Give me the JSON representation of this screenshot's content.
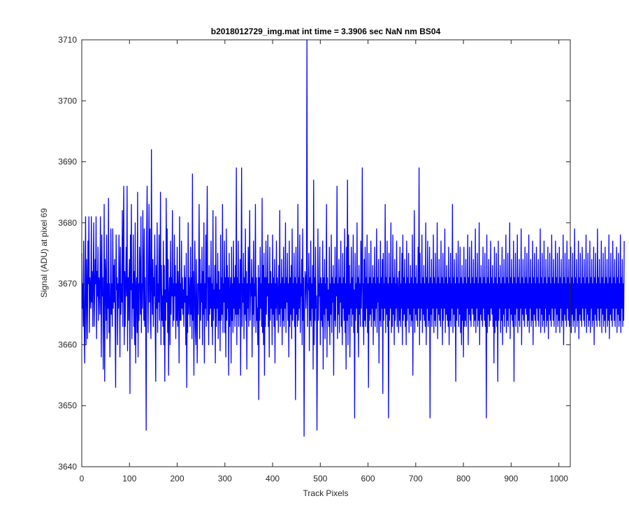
{
  "chart_data": {
    "type": "line",
    "title": "b2018012729_img.mat int time = 3.3906 sec  NaN nm BS04",
    "xlabel": "Track Pixels",
    "ylabel": "Signal (ADU) at pixel 69",
    "xlim": [
      0,
      1024
    ],
    "ylim": [
      3640,
      3710
    ],
    "xticks": [
      0,
      100,
      200,
      300,
      400,
      500,
      600,
      700,
      800,
      900,
      1000
    ],
    "yticks": [
      3640,
      3650,
      3660,
      3670,
      3680,
      3690,
      3700,
      3710
    ],
    "grid": false,
    "legend": "none",
    "series_color": "#0000ff",
    "series": [
      {
        "x_start": 0,
        "x_step": 1,
        "values": [
          3675,
          3666,
          3670,
          3663,
          3677,
          3664,
          3657,
          3670,
          3681,
          3660,
          3674,
          3669,
          3661,
          3677,
          3670,
          3681,
          3662,
          3671,
          3669,
          3666,
          3681,
          3667,
          3672,
          3663,
          3671,
          3680,
          3663,
          3668,
          3674,
          3670,
          3681,
          3661,
          3672,
          3668,
          3676,
          3664,
          3671,
          3670,
          3665,
          3681,
          3672,
          3658,
          3678,
          3668,
          3671,
          3656,
          3667,
          3683,
          3654,
          3674,
          3671,
          3664,
          3678,
          3661,
          3670,
          3666,
          3684,
          3662,
          3670,
          3658,
          3666,
          3679,
          3665,
          3670,
          3663,
          3679,
          3666,
          3673,
          3667,
          3674,
          3663,
          3653,
          3678,
          3669,
          3671,
          3660,
          3670,
          3666,
          3678,
          3671,
          3658,
          3676,
          3665,
          3670,
          3667,
          3682,
          3663,
          3676,
          3686,
          3660,
          3672,
          3663,
          3670,
          3676,
          3668,
          3686,
          3659,
          3671,
          3664,
          3671,
          3674,
          3652,
          3678,
          3669,
          3683,
          3661,
          3670,
          3666,
          3678,
          3663,
          3672,
          3660,
          3680,
          3657,
          3669,
          3671,
          3662,
          3685,
          3658,
          3670,
          3664,
          3676,
          3672,
          3665,
          3681,
          3662,
          3670,
          3666,
          3682,
          3671,
          3664,
          3679,
          3663,
          3671,
          3665,
          3646,
          3678,
          3686,
          3670,
          3662,
          3671,
          3683,
          3667,
          3679,
          3664,
          3661,
          3692,
          3670,
          3665,
          3674,
          3663,
          3671,
          3668,
          3678,
          3663,
          3654,
          3673,
          3666,
          3680,
          3662,
          3670,
          3667,
          3678,
          3664,
          3671,
          3685,
          3660,
          3673,
          3664,
          3668,
          3663,
          3677,
          3660,
          3673,
          3654,
          3669,
          3664,
          3684,
          3667,
          3679,
          3662,
          3674,
          3655,
          3668,
          3671,
          3660,
          3677,
          3665,
          3671,
          3668,
          3682,
          3663,
          3670,
          3664,
          3678,
          3668,
          3673,
          3661,
          3670,
          3664,
          3676,
          3663,
          3672,
          3669,
          3657,
          3681,
          3664,
          3670,
          3664,
          3677,
          3666,
          3671,
          3665,
          3669,
          3663,
          3673,
          3667,
          3671,
          3660,
          3675,
          3653,
          3668,
          3662,
          3680,
          3665,
          3671,
          3668,
          3663,
          3676,
          3665,
          3671,
          3661,
          3688,
          3664,
          3672,
          3655,
          3669,
          3677,
          3663,
          3660,
          3674,
          3666,
          3657,
          3670,
          3665,
          3671,
          3683,
          3661,
          3674,
          3664,
          3670,
          3667,
          3676,
          3660,
          3672,
          3665,
          3680,
          3657,
          3670,
          3666,
          3678,
          3663,
          3675,
          3686,
          3664,
          3671,
          3660,
          3673,
          3665,
          3671,
          3666,
          3677,
          3663,
          3670,
          3660,
          3682,
          3664,
          3669,
          3666,
          3673,
          3657,
          3681,
          3663,
          3670,
          3666,
          3675,
          3661,
          3672,
          3664,
          3669,
          3659,
          3678,
          3664,
          3671,
          3665,
          3683,
          3662,
          3670,
          3667,
          3677,
          3662,
          3671,
          3658,
          3679,
          3664,
          3673,
          3666,
          3671,
          3655,
          3675,
          3663,
          3668,
          3671,
          3657,
          3676,
          3664,
          3670,
          3662,
          3677,
          3666,
          3671,
          3663,
          3673,
          3665,
          3689,
          3660,
          3671,
          3665,
          3677,
          3663,
          3670,
          3666,
          3674,
          3655,
          3671,
          3689,
          3663,
          3670,
          3667,
          3675,
          3661,
          3671,
          3665,
          3679,
          3664,
          3672,
          3656,
          3670,
          3666,
          3676,
          3663,
          3671,
          3682,
          3664,
          3670,
          3668,
          3674,
          3658,
          3671,
          3665,
          3677,
          3663,
          3670,
          3668,
          3683,
          3662,
          3671,
          3664,
          3666,
          3660,
          3673,
          3651,
          3671,
          3664,
          3676,
          3666,
          3670,
          3663,
          3684,
          3662,
          3673,
          3660,
          3675,
          3655,
          3671,
          3663,
          3677,
          3665,
          3671,
          3668,
          3678,
          3663,
          3670,
          3658,
          3676,
          3664,
          3672,
          3666,
          3670,
          3660,
          3678,
          3665,
          3671,
          3663,
          3674,
          3657,
          3670,
          3666,
          3677,
          3664,
          3671,
          3669,
          3662,
          3673,
          3665,
          3682,
          3663,
          3670,
          3666,
          3674,
          3660,
          3671,
          3664,
          3676,
          3663,
          3670,
          3666,
          3680,
          3662,
          3671,
          3667,
          3675,
          3664,
          3670,
          3658,
          3677,
          3663,
          3671,
          3665,
          3673,
          3661,
          3679,
          3664,
          3670,
          3666,
          3675,
          3663,
          3671,
          3651,
          3676,
          3665,
          3670,
          3663,
          3683,
          3664,
          3671,
          3666,
          3678,
          3662,
          3670,
          3668,
          3674,
          3660,
          3679,
          3664,
          3671,
          3645,
          3665,
          3672,
          3671,
          3666,
          3670,
          3710,
          3663,
          3670,
          3669,
          3675,
          3659,
          3671,
          3664,
          3677,
          3663,
          3670,
          3666,
          3673,
          3656,
          3687,
          3660,
          3671,
          3664,
          3676,
          3666,
          3668,
          3646,
          3663,
          3679,
          3664,
          3670,
          3668,
          3676,
          3660,
          3671,
          3664,
          3670,
          3663,
          3677,
          3656,
          3671,
          3665,
          3674,
          3661,
          3670,
          3666,
          3683,
          3658,
          3671,
          3664,
          3669,
          3663,
          3676,
          3660,
          3670,
          3665,
          3678,
          3662,
          3671,
          3667,
          3673,
          3655,
          3670,
          3664,
          3676,
          3663,
          3671,
          3668,
          3686,
          3661,
          3670,
          3665,
          3674,
          3662,
          3671,
          3667,
          3677,
          3663,
          3670,
          3660,
          3675,
          3666,
          3671,
          3664,
          3679,
          3662,
          3670,
          3656,
          3676,
          3664,
          3687,
          3660,
          3678,
          3665,
          3673,
          3658,
          3670,
          3666,
          3676,
          3663,
          3671,
          3665,
          3678,
          3662,
          3669,
          3648,
          3675,
          3664,
          3670,
          3666,
          3680,
          3662,
          3671,
          3658,
          3673,
          3665,
          3670,
          3663,
          3677,
          3666,
          3671,
          3689,
          3663,
          3670,
          3660,
          3674,
          3664,
          3676,
          3663,
          3671,
          3666,
          3678,
          3662,
          3670,
          3653,
          3675,
          3664,
          3671,
          3665,
          3677,
          3663,
          3670,
          3666,
          3673,
          3660,
          3671,
          3664,
          3676,
          3663,
          3670,
          3666,
          3679,
          3662,
          3671,
          3667,
          3674,
          3657,
          3670,
          3664,
          3677,
          3663,
          3671,
          3666,
          3674,
          3652,
          3675,
          3664,
          3670,
          3666,
          3683,
          3662,
          3671,
          3665,
          3677,
          3663,
          3670,
          3648,
          3675,
          3664,
          3671,
          3666,
          3680,
          3662,
          3670,
          3663,
          3678,
          3665,
          3671,
          3660,
          3674,
          3664,
          3670,
          3666,
          3677,
          3663,
          3671,
          3669,
          3662,
          3672,
          3664,
          3676,
          3663,
          3670,
          3666,
          3675,
          3660,
          3678,
          3664,
          3671,
          3665,
          3674,
          3663,
          3670,
          3660,
          3677,
          3664,
          3671,
          3666,
          3675,
          3662,
          3670,
          3665,
          3673,
          3663,
          3671,
          3664,
          3678,
          3655,
          3670,
          3666,
          3682,
          3662,
          3671,
          3665,
          3673,
          3664,
          3670,
          3663,
          3676,
          3666,
          3689,
          3660,
          3675,
          3664,
          3670,
          3666,
          3678,
          3662,
          3671,
          3665,
          3673,
          3664,
          3670,
          3663,
          3680,
          3660,
          3671,
          3666,
          3677,
          3663,
          3670,
          3664,
          3676,
          3648,
          3671,
          3665,
          3674,
          3663,
          3670,
          3666,
          3678,
          3662,
          3671,
          3664,
          3675,
          3663,
          3670,
          3666,
          3680,
          3661,
          3671,
          3665,
          3674,
          3664,
          3670,
          3663,
          3677,
          3666,
          3671,
          3660,
          3675,
          3664,
          3670,
          3666,
          3679,
          3662,
          3671,
          3665,
          3673,
          3664,
          3670,
          3663,
          3676,
          3660,
          3671,
          3664,
          3675,
          3663,
          3670,
          3666,
          3683,
          3662,
          3671,
          3665,
          3674,
          3663,
          3670,
          3654,
          3675,
          3664,
          3671,
          3666,
          3677,
          3663,
          3670,
          3665,
          3676,
          3662,
          3671,
          3660,
          3673,
          3664,
          3670,
          3658,
          3676,
          3663,
          3671,
          3664,
          3674,
          3663,
          3670,
          3666,
          3678,
          3660,
          3671,
          3665,
          3676,
          3664,
          3670,
          3663,
          3677,
          3666,
          3671,
          3665,
          3674,
          3663,
          3670,
          3664,
          3679,
          3662,
          3671,
          3666,
          3675,
          3663,
          3670,
          3664,
          3680,
          3660,
          3671,
          3665,
          3673,
          3664,
          3670,
          3663,
          3676,
          3666,
          3671,
          3664,
          3675,
          3663,
          3670,
          3648,
          3678,
          3662,
          3671,
          3665,
          3674,
          3663,
          3670,
          3664,
          3677,
          3666,
          3671,
          3665,
          3673,
          3663,
          3670,
          3657,
          3676,
          3662,
          3671,
          3664,
          3675,
          3663,
          3670,
          3654,
          3677,
          3664,
          3671,
          3666,
          3673,
          3662,
          3670,
          3664,
          3676,
          3660,
          3671,
          3665,
          3674,
          3663,
          3670,
          3666,
          3678,
          3662,
          3671,
          3664,
          3675,
          3663,
          3670,
          3666,
          3680,
          3661,
          3671,
          3665,
          3674,
          3664,
          3670,
          3663,
          3677,
          3654,
          3671,
          3665,
          3675,
          3663,
          3670,
          3666,
          3678,
          3662,
          3671,
          3664,
          3674,
          3663,
          3670,
          3666,
          3679,
          3660,
          3671,
          3665,
          3674,
          3664,
          3670,
          3663,
          3676,
          3666,
          3671,
          3665,
          3675,
          3663,
          3670,
          3664,
          3678,
          3662,
          3671,
          3666,
          3674,
          3663,
          3670,
          3664,
          3677,
          3660,
          3671,
          3665,
          3675,
          3664,
          3670,
          3663,
          3676,
          3666,
          3671,
          3664,
          3674,
          3663,
          3670,
          3666,
          3679,
          3662,
          3671,
          3665,
          3675,
          3663,
          3670,
          3664,
          3677,
          3662,
          3671,
          3666,
          3674,
          3663,
          3670,
          3664,
          3676,
          3661,
          3671,
          3665,
          3675,
          3664,
          3670,
          3663,
          3678,
          3666,
          3671,
          3664,
          3674,
          3663,
          3670,
          3666,
          3677,
          3662,
          3671,
          3665,
          3675,
          3663,
          3670,
          3664,
          3676,
          3662,
          3671,
          3666,
          3674,
          3663,
          3670,
          3664,
          3678,
          3660,
          3671,
          3665,
          3675,
          3664,
          3670,
          3663,
          3677,
          3666,
          3671,
          3664,
          3674,
          3663,
          3670,
          3666,
          3676,
          3662,
          3671,
          3665,
          3675,
          3663,
          3670,
          3664,
          3679,
          3662,
          3671,
          3666,
          3674,
          3663,
          3670,
          3664,
          3677,
          3661,
          3671,
          3665,
          3675,
          3664,
          3670,
          3663,
          3676,
          3666,
          3671,
          3664,
          3674,
          3663,
          3670,
          3666,
          3678,
          3662,
          3671,
          3665,
          3675,
          3663,
          3670,
          3664,
          3677,
          3662,
          3671,
          3666,
          3674,
          3663,
          3670,
          3664,
          3676,
          3660,
          3671,
          3665,
          3675,
          3664,
          3670,
          3663,
          3679,
          3666,
          3671,
          3664,
          3674,
          3663,
          3670,
          3666,
          3677,
          3662,
          3671,
          3665,
          3675,
          3663,
          3670,
          3664,
          3676,
          3662,
          3671,
          3666,
          3674,
          3663,
          3670,
          3664,
          3678,
          3661,
          3671,
          3665,
          3675,
          3664,
          3670,
          3663,
          3677,
          3666,
          3671,
          3664,
          3674,
          3663,
          3670,
          3666,
          3676,
          3662,
          3671,
          3665,
          3675,
          3663,
          3670,
          3664,
          3678,
          3662,
          3671,
          3666,
          3674,
          3663,
          3670,
          3664,
          3677
        ]
      }
    ]
  }
}
